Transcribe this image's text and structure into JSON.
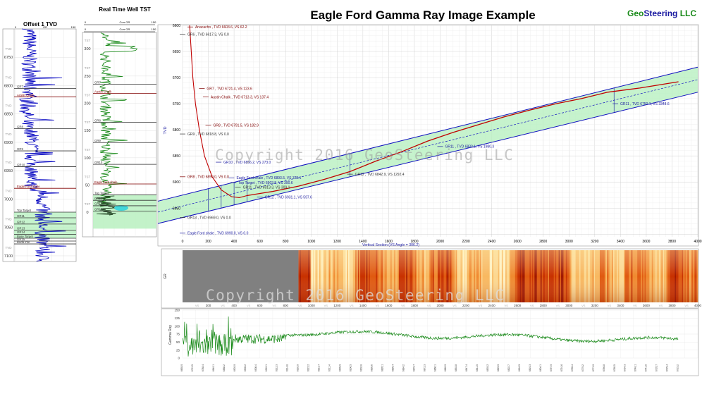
{
  "header": {
    "title": "Eagle Ford Gamma Ray Image Example",
    "brand_geo": "Geo",
    "brand_steering": "Steering",
    "brand_llc": " LLC",
    "copyright": "Copyright 2016 GeoSteering LLC"
  },
  "colors": {
    "brand_green": "#1a8a1a",
    "brand_blue": "#1a1aa0",
    "wellpath_red": "#c00000",
    "vertical_red": "#c00000",
    "corridor_fill": "#b8f0c0",
    "corridor_line": "#1010c0",
    "gamma_green": "#1a8a1a",
    "offset_blue": "#0000c0"
  },
  "chart_data": [
    {
      "id": "offset1",
      "type": "line",
      "title": "Offset 1 TVD",
      "scale_label": "GR",
      "scale_min": "0",
      "scale_max": "150",
      "ylim": [
        6700,
        7110
      ],
      "yticks": [
        6750,
        6800,
        6850,
        6900,
        6950,
        7000,
        7050,
        7100
      ],
      "tvd_labels": [
        "TVD",
        "TVD",
        "TVD",
        "TVD",
        "TVD",
        "TVD",
        "TVD",
        "TVD"
      ],
      "markers": [
        {
          "name": "GR7",
          "tvd": 6805,
          "color": "#333333"
        },
        {
          "name": "Austin Chalk",
          "tvd": 6820,
          "color": "#800000"
        },
        {
          "name": "GR8",
          "tvd": 6876,
          "color": "#333333"
        },
        {
          "name": "GR9",
          "tvd": 6915,
          "color": "#333333"
        },
        {
          "name": "GR10",
          "tvd": 6943,
          "color": "#333333"
        },
        {
          "name": "Eagle Ford shale",
          "tvd": 6981,
          "color": "#800000"
        },
        {
          "name": "Top Target",
          "tvd": 7023,
          "color": "#333333"
        },
        {
          "name": "GR11",
          "tvd": 7033,
          "color": "#333333"
        },
        {
          "name": "GR12",
          "tvd": 7044,
          "color": "#333333"
        },
        {
          "name": "GR13",
          "tvd": 7055,
          "color": "#333333"
        },
        {
          "name": "GR14",
          "tvd": 7062,
          "color": "#333333"
        },
        {
          "name": "Base Target",
          "tvd": 7069,
          "color": "#333333"
        },
        {
          "name": "GR15",
          "tvd": 7074,
          "color": "#333333"
        },
        {
          "name": "Buda Ime",
          "tvd": 7079,
          "color": "#333333"
        }
      ]
    },
    {
      "id": "realtime",
      "type": "line",
      "title": "Real Time Well TST",
      "scale1_label": "Corr GR",
      "scale1_min": "0",
      "scale1_max": "150",
      "scale2_label": "Corr GR",
      "scale2_min": "0",
      "scale2_max": "150",
      "ylim": [
        -45,
        330
      ],
      "yticks": [
        300,
        250,
        200,
        150,
        100,
        50,
        0
      ],
      "tst_labels": [
        "TST",
        "TST",
        "TST",
        "TST",
        "TST",
        "TST",
        "TST"
      ],
      "markers": [
        {
          "name": "GR7",
          "tst": 235,
          "color": "#333333"
        },
        {
          "name": "Austin Chalk",
          "tst": 218,
          "color": "#800000"
        },
        {
          "name": "GR8",
          "tst": 165,
          "color": "#333333"
        },
        {
          "name": "GR9",
          "tst": 128,
          "color": "#333333"
        },
        {
          "name": "GR10",
          "tst": 88,
          "color": "#333333"
        },
        {
          "name": "Eagle Ford shale",
          "tst": 52,
          "color": "#800000"
        },
        {
          "name": "Top Target",
          "tst": 32,
          "color": "#333333"
        },
        {
          "name": "GR11",
          "tst": 22,
          "color": "#333333"
        },
        {
          "name": "GR12",
          "tst": 12,
          "color": "#333333"
        },
        {
          "name": "GR13",
          "tst": 2,
          "color": "#333333"
        }
      ]
    },
    {
      "id": "section",
      "type": "line",
      "xlabel": "Vertical Section (VS Angle = 306.2)",
      "ylabel": "TVD",
      "xlim": [
        0,
        4000
      ],
      "ylim": [
        6600,
        7005
      ],
      "xticks": [
        0,
        200,
        400,
        600,
        800,
        1000,
        1200,
        1400,
        1600,
        1800,
        2000,
        2200,
        2400,
        2600,
        2800,
        3000,
        3200,
        3400,
        3600,
        3800,
        4000
      ],
      "yticks": [
        6600,
        6650,
        6700,
        6750,
        6800,
        6850,
        6900,
        6950
      ],
      "wellpath": {
        "vertical": [
          [
            55,
            6600
          ],
          [
            65,
            6640
          ],
          [
            80,
            6700
          ],
          [
            100,
            6750
          ],
          [
            130,
            6800
          ],
          [
            170,
            6850
          ],
          [
            230,
            6890
          ],
          [
            300,
            6915
          ],
          [
            380,
            6928
          ],
          [
            440,
            6930
          ],
          [
            500,
            6926
          ]
        ],
        "lateral": [
          [
            500,
            6926
          ],
          [
            700,
            6918
          ],
          [
            900,
            6908
          ],
          [
            1100,
            6895
          ],
          [
            1300,
            6880
          ],
          [
            1500,
            6860
          ],
          [
            1700,
            6842
          ],
          [
            1900,
            6822
          ],
          [
            2100,
            6805
          ],
          [
            2300,
            6790
          ],
          [
            2500,
            6775
          ],
          [
            2700,
            6762
          ],
          [
            2900,
            6750
          ],
          [
            3100,
            6740
          ],
          [
            3300,
            6728
          ],
          [
            3550,
            6720
          ],
          [
            3850,
            6708
          ]
        ]
      },
      "corridor_top": [
        [
          0,
          6925
        ],
        [
          4000,
          6680
        ]
      ],
      "corridor_bot": [
        [
          0,
          6968
        ],
        [
          4000,
          6728
        ]
      ],
      "corridor_mid": [
        [
          0,
          6946
        ],
        [
          4000,
          6704
        ]
      ],
      "vlines_vs": [
        200,
        300,
        400,
        500,
        1300,
        3350
      ],
      "labels": [
        {
          "text": "Anacacho , TVD 6603.6, VS 62.2",
          "vs": 60,
          "tvd": 6603,
          "color": "#800000"
        },
        {
          "text": "GR6 , TVD 6617.3, VS 0.0",
          "vs": 0,
          "tvd": 6617,
          "color": "#333333"
        },
        {
          "text": "GR7 , TVD 6721.4, VS 123.6",
          "vs": 150,
          "tvd": 6721,
          "color": "#800000"
        },
        {
          "text": "Austin Chalk , TVD 6713.3, VS 137.4",
          "vs": 180,
          "tvd": 6737,
          "color": "#800000"
        },
        {
          "text": "GR8 , TVD 6791.5, VS 182.9",
          "vs": 200,
          "tvd": 6791,
          "color": "#800000"
        },
        {
          "text": "GR9 , TVD 6818.8, VS 0.0",
          "vs": 0,
          "tvd": 6808,
          "color": "#333333"
        },
        {
          "text": "GR10 , TVD 6856.2, VS 273.0",
          "vs": 280,
          "tvd": 6862,
          "color": "#1a1aa0"
        },
        {
          "text": "GR8 , TVD 6890.0, VS 0.0",
          "vs": 0,
          "tvd": 6890,
          "color": "#800000"
        },
        {
          "text": "Eagle Ford shale , TVD 6893.5, VS 378.1",
          "vs": 380,
          "tvd": 6892,
          "color": "#1a1aa0"
        },
        {
          "text": "Top Target , TVD 6903.5, VS 390.6",
          "vs": 395,
          "tvd": 6901,
          "color": "#1a1aa0"
        },
        {
          "text": "GR11 , TVD 6913.3, VS 309.1",
          "vs": 430,
          "tvd": 6910,
          "color": "#333333"
        },
        {
          "text": "GR12 , TVD 6931.1, VS 597.6",
          "vs": 600,
          "tvd": 6929,
          "color": "#1a1aa0"
        },
        {
          "text": "GR13 , TVD 6969.0, VS 0.0",
          "vs": 0,
          "tvd": 6968,
          "color": "#333333"
        },
        {
          "text": "Eagle Ford shale , TVD 6990.0, VS 0.0",
          "vs": 0,
          "tvd": 6998,
          "color": "#1a1aa0"
        },
        {
          "text": "GR12 , TVD 6842.9, VS 1292.4",
          "vs": 1300,
          "tvd": 6885,
          "color": "#333333"
        },
        {
          "text": "GR11 , TVD 6832.1, VS 1980.3",
          "vs": 2000,
          "tvd": 6832,
          "color": "#1a1aa0"
        },
        {
          "text": "GR11 , TVD 6750.1, VS 3348.6",
          "vs": 3360,
          "tvd": 6750,
          "color": "#1a1aa0"
        }
      ]
    },
    {
      "id": "image",
      "type": "heatmap",
      "xlim": [
        0,
        4000
      ],
      "xticks": [
        200,
        400,
        600,
        800,
        1000,
        1200,
        1400,
        1600,
        1800,
        2000,
        2200,
        2400,
        2600,
        2800,
        3000,
        3200,
        3400,
        3600,
        3800,
        4000
      ],
      "ylabel": "GR",
      "gray_end_vs": 900,
      "vs_label": "VS"
    },
    {
      "id": "gamma",
      "type": "line",
      "ylabel": "Gamma Ray",
      "ylim": [
        0,
        150
      ],
      "yticks": [
        0,
        25,
        50,
        75,
        100,
        125,
        150
      ],
      "xlim": [
        0,
        4000
      ],
      "depth_labels": [
        "6655.0",
        "6713.5",
        "6768.4",
        "6840.1",
        "6888.2",
        "6903.9",
        "6906.2",
        "6908.4",
        "6910.1",
        "6912.3",
        "6914.8",
        "6916.0",
        "6915.2",
        "6913.7",
        "6911.4",
        "6909.9",
        "6906.5",
        "6902.8",
        "6899.6",
        "6895.1",
        "6890.4",
        "6884.2",
        "6878.7",
        "6872.3",
        "6866.1",
        "6860.0",
        "6853.8",
        "6847.4",
        "6841.5",
        "6835.2",
        "6829.0",
        "6822.7",
        "6816.5",
        "6810.3",
        "6804.1",
        "6797.9",
        "6791.6",
        "6785.4",
        "6779.2",
        "6773.0",
        "6766.8",
        "6760.5",
        "6754.3",
        "6748.1",
        "6741.9",
        "6735.7",
        "6729.4",
        "6723.2"
      ]
    }
  ]
}
